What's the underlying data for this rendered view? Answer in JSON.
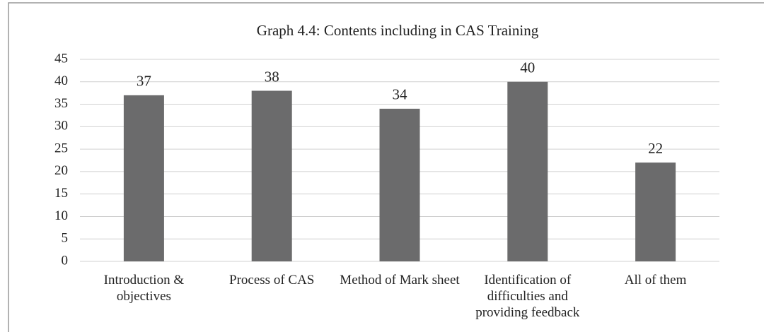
{
  "chart_data": {
    "type": "bar",
    "title": "Graph 4.4: Contents including in CAS Training",
    "categories": [
      "Introduction & objectives",
      "Process of CAS",
      "Method of Mark sheet",
      "Identification of difficulties and providing feedback",
      "All of them"
    ],
    "values": [
      37,
      38,
      34,
      40,
      22
    ],
    "color": "#6b6b6c",
    "ylim": [
      0,
      45
    ],
    "yticks": [
      0,
      5,
      10,
      15,
      20,
      25,
      30,
      35,
      40,
      45
    ],
    "grid": true
  }
}
